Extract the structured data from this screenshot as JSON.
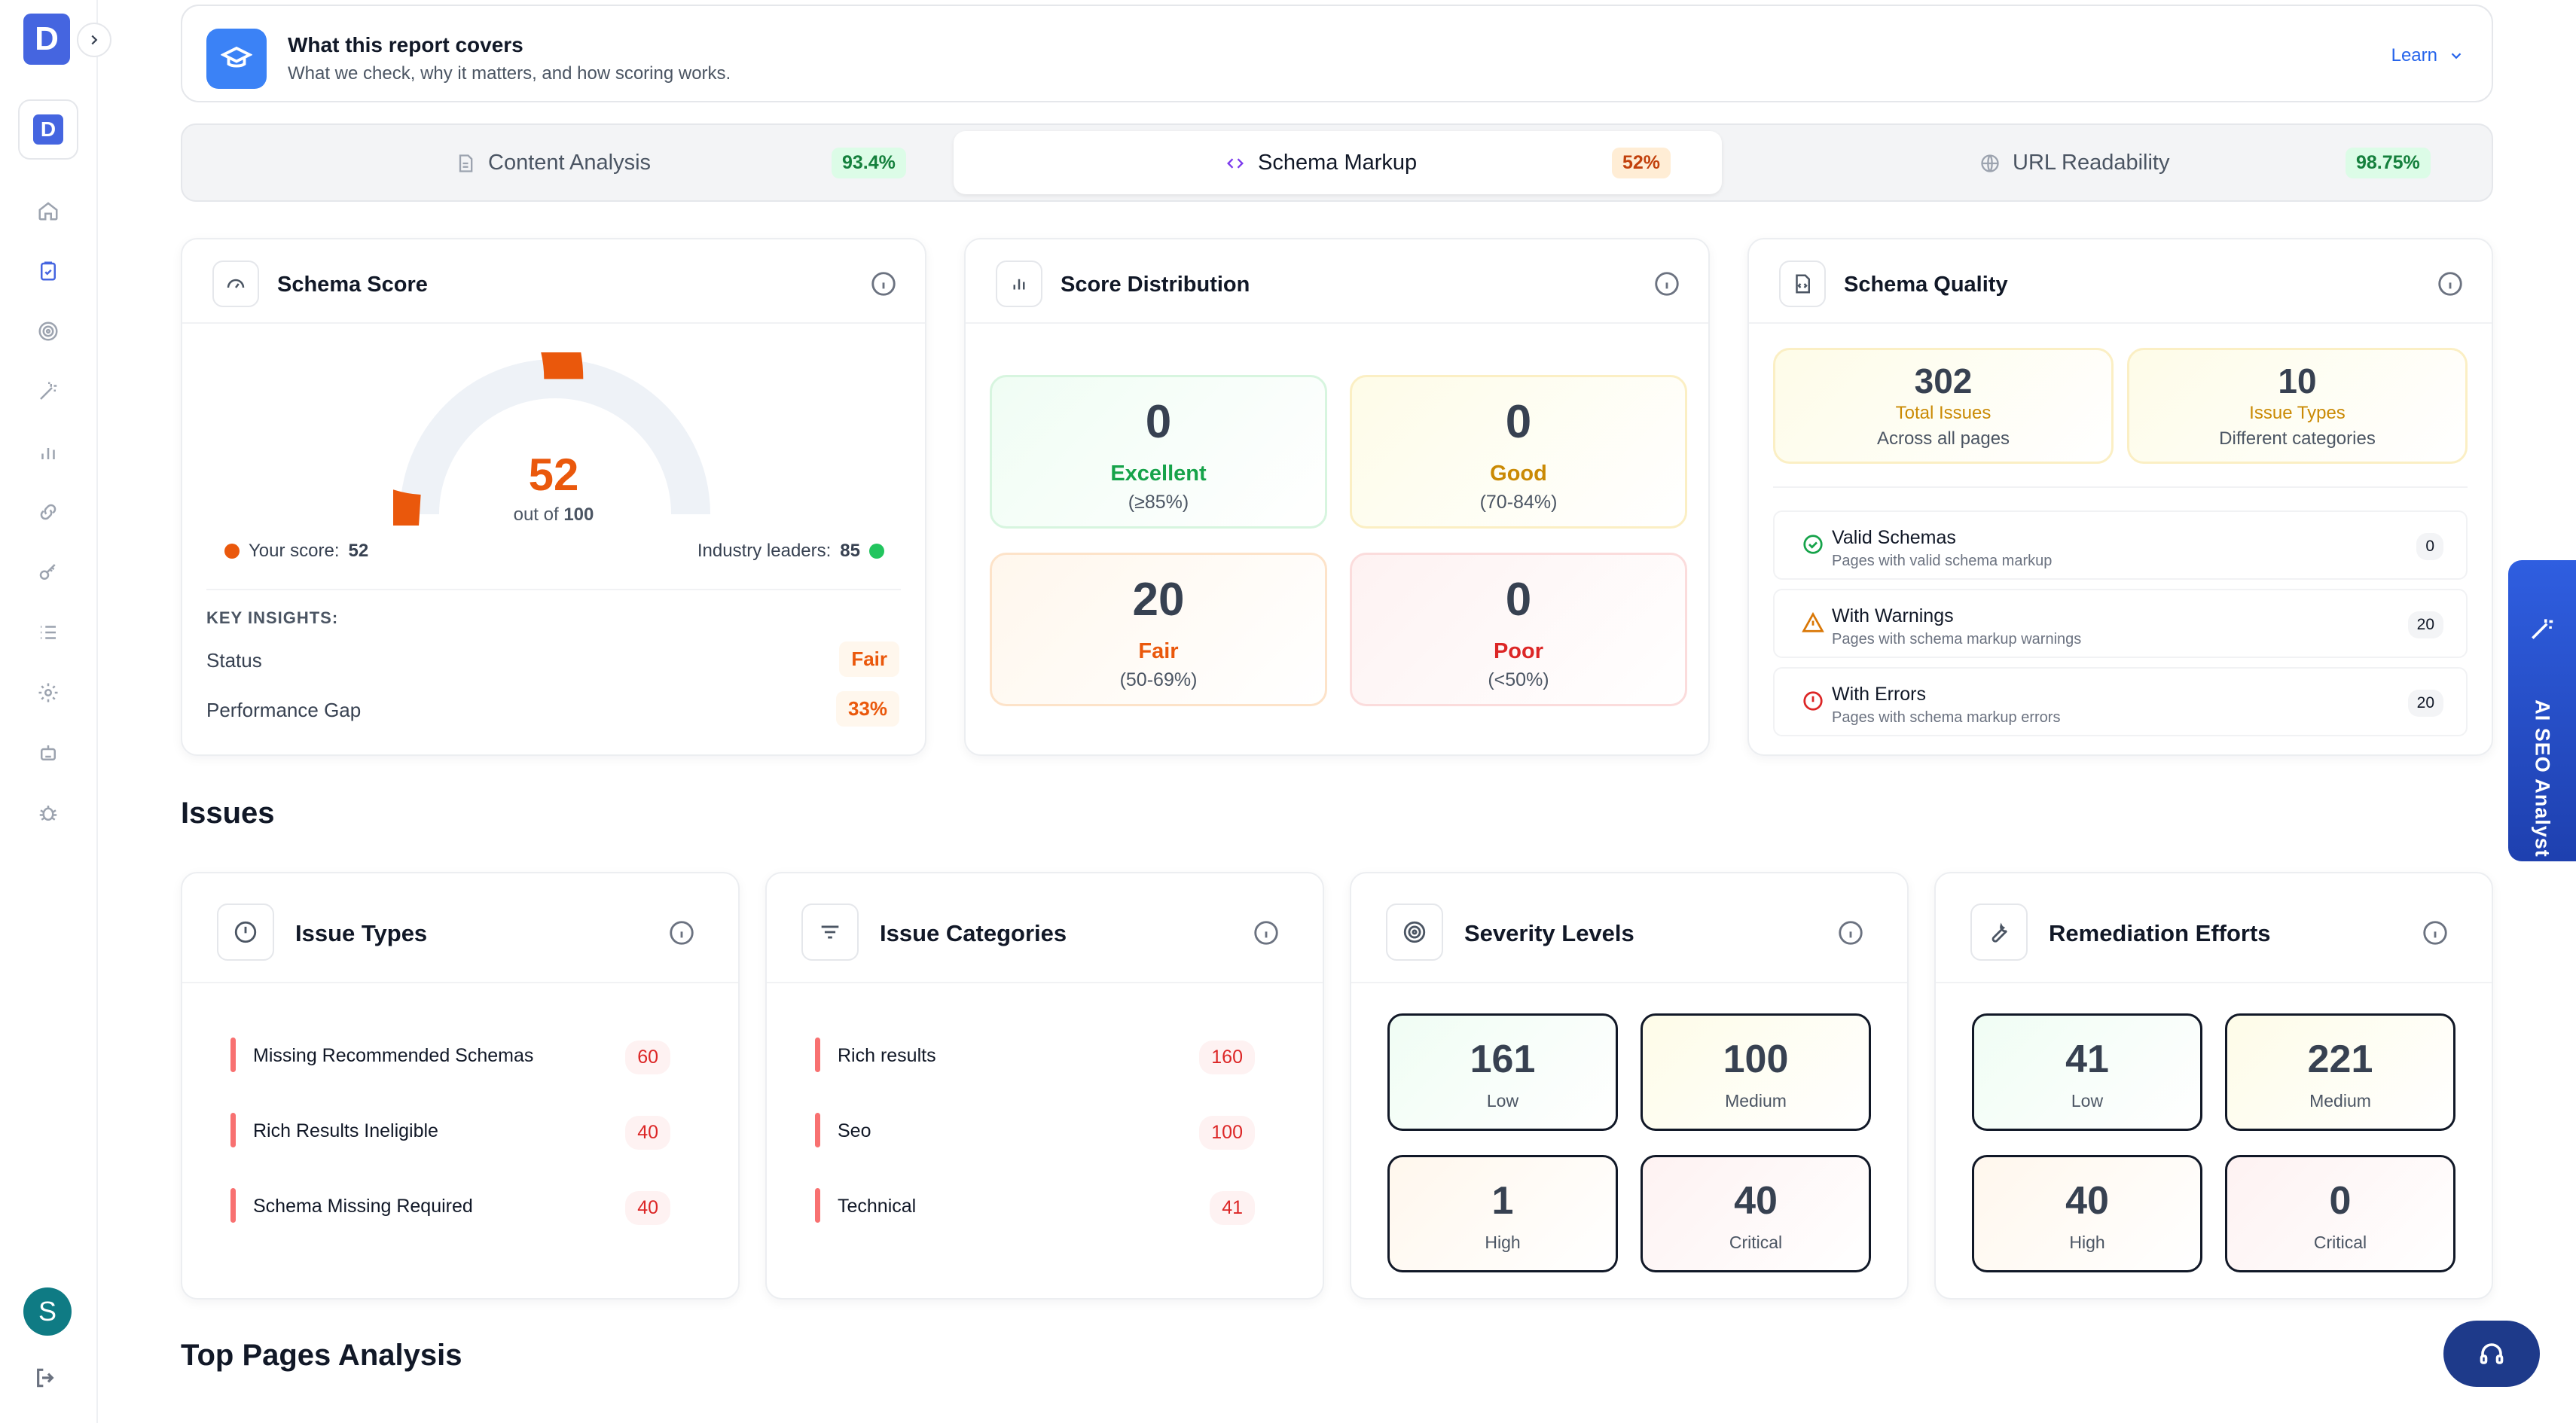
{
  "sidebar": {
    "logo_letter": "D",
    "brand_letter": "D",
    "avatar_letter": "S",
    "nav": [
      "home-icon",
      "clipboard-check-icon",
      "target-icon",
      "magic-wand-icon",
      "bar-chart-icon",
      "link-icon",
      "key-icon",
      "list-icon",
      "gear-icon",
      "robot-icon",
      "bug-icon"
    ]
  },
  "banner": {
    "title": "What this report covers",
    "subtitle": "What we check, why it matters, and how scoring works.",
    "learn": "Learn"
  },
  "tabs": [
    {
      "label": "Content Analysis",
      "badge": "93.4%"
    },
    {
      "label": "Schema Markup",
      "badge": "52%"
    },
    {
      "label": "URL Readability",
      "badge": "98.75%"
    }
  ],
  "schema_score": {
    "title": "Schema Score",
    "score": "52",
    "score_value": 52,
    "out_of_prefix": "out of",
    "out_of": "100",
    "your_label": "Your score:",
    "your_value": "52",
    "leaders_label": "Industry leaders:",
    "leaders_value": "85",
    "insights_title": "KEY INSIGHTS:",
    "status_label": "Status",
    "status_value": "Fair",
    "gap_label": "Performance Gap",
    "gap_value": "33%",
    "colors": {
      "gauge": "#ea580c",
      "track": "#eef2f7",
      "leader_dot": "#22c55e"
    }
  },
  "distribution": {
    "title": "Score Distribution",
    "tiles": [
      {
        "count": "0",
        "label": "Excellent",
        "range": "(≥85%)",
        "color": "#16a34a"
      },
      {
        "count": "0",
        "label": "Good",
        "range": "(70-84%)",
        "color": "#ca8a04"
      },
      {
        "count": "20",
        "label": "Fair",
        "range": "(50-69%)",
        "color": "#ea580c"
      },
      {
        "count": "0",
        "label": "Poor",
        "range": "(<50%)",
        "color": "#dc2626"
      }
    ]
  },
  "quality": {
    "title": "Schema Quality",
    "total_issues": "302",
    "total_label": "Total Issues",
    "total_sub": "Across all pages",
    "issue_types": "10",
    "types_label": "Issue Types",
    "types_sub": "Different categories",
    "rows": [
      {
        "title": "Valid Schemas",
        "sub": "Pages with valid schema markup",
        "count": "0"
      },
      {
        "title": "With Warnings",
        "sub": "Pages with schema markup warnings",
        "count": "20"
      },
      {
        "title": "With Errors",
        "sub": "Pages with schema markup errors",
        "count": "20"
      }
    ]
  },
  "issues_heading": "Issues",
  "issue_types": {
    "title": "Issue Types",
    "items": [
      {
        "label": "Missing Recommended Schemas",
        "count": "60"
      },
      {
        "label": "Rich Results Ineligible",
        "count": "40"
      },
      {
        "label": "Schema Missing Required",
        "count": "40"
      }
    ]
  },
  "issue_categories": {
    "title": "Issue Categories",
    "items": [
      {
        "label": "Rich results",
        "count": "160"
      },
      {
        "label": "Seo",
        "count": "100"
      },
      {
        "label": "Technical",
        "count": "41"
      }
    ]
  },
  "severity": {
    "title": "Severity Levels",
    "tiles": [
      {
        "count": "161",
        "label": "Low"
      },
      {
        "count": "100",
        "label": "Medium"
      },
      {
        "count": "1",
        "label": "High"
      },
      {
        "count": "40",
        "label": "Critical"
      }
    ]
  },
  "remediation": {
    "title": "Remediation Efforts",
    "tiles": [
      {
        "count": "41",
        "label": "Low"
      },
      {
        "count": "221",
        "label": "Medium"
      },
      {
        "count": "40",
        "label": "High"
      },
      {
        "count": "0",
        "label": "Critical"
      }
    ]
  },
  "top_pages_heading": "Top Pages Analysis",
  "ai_tab": {
    "label": "AI SEO Analyst"
  }
}
